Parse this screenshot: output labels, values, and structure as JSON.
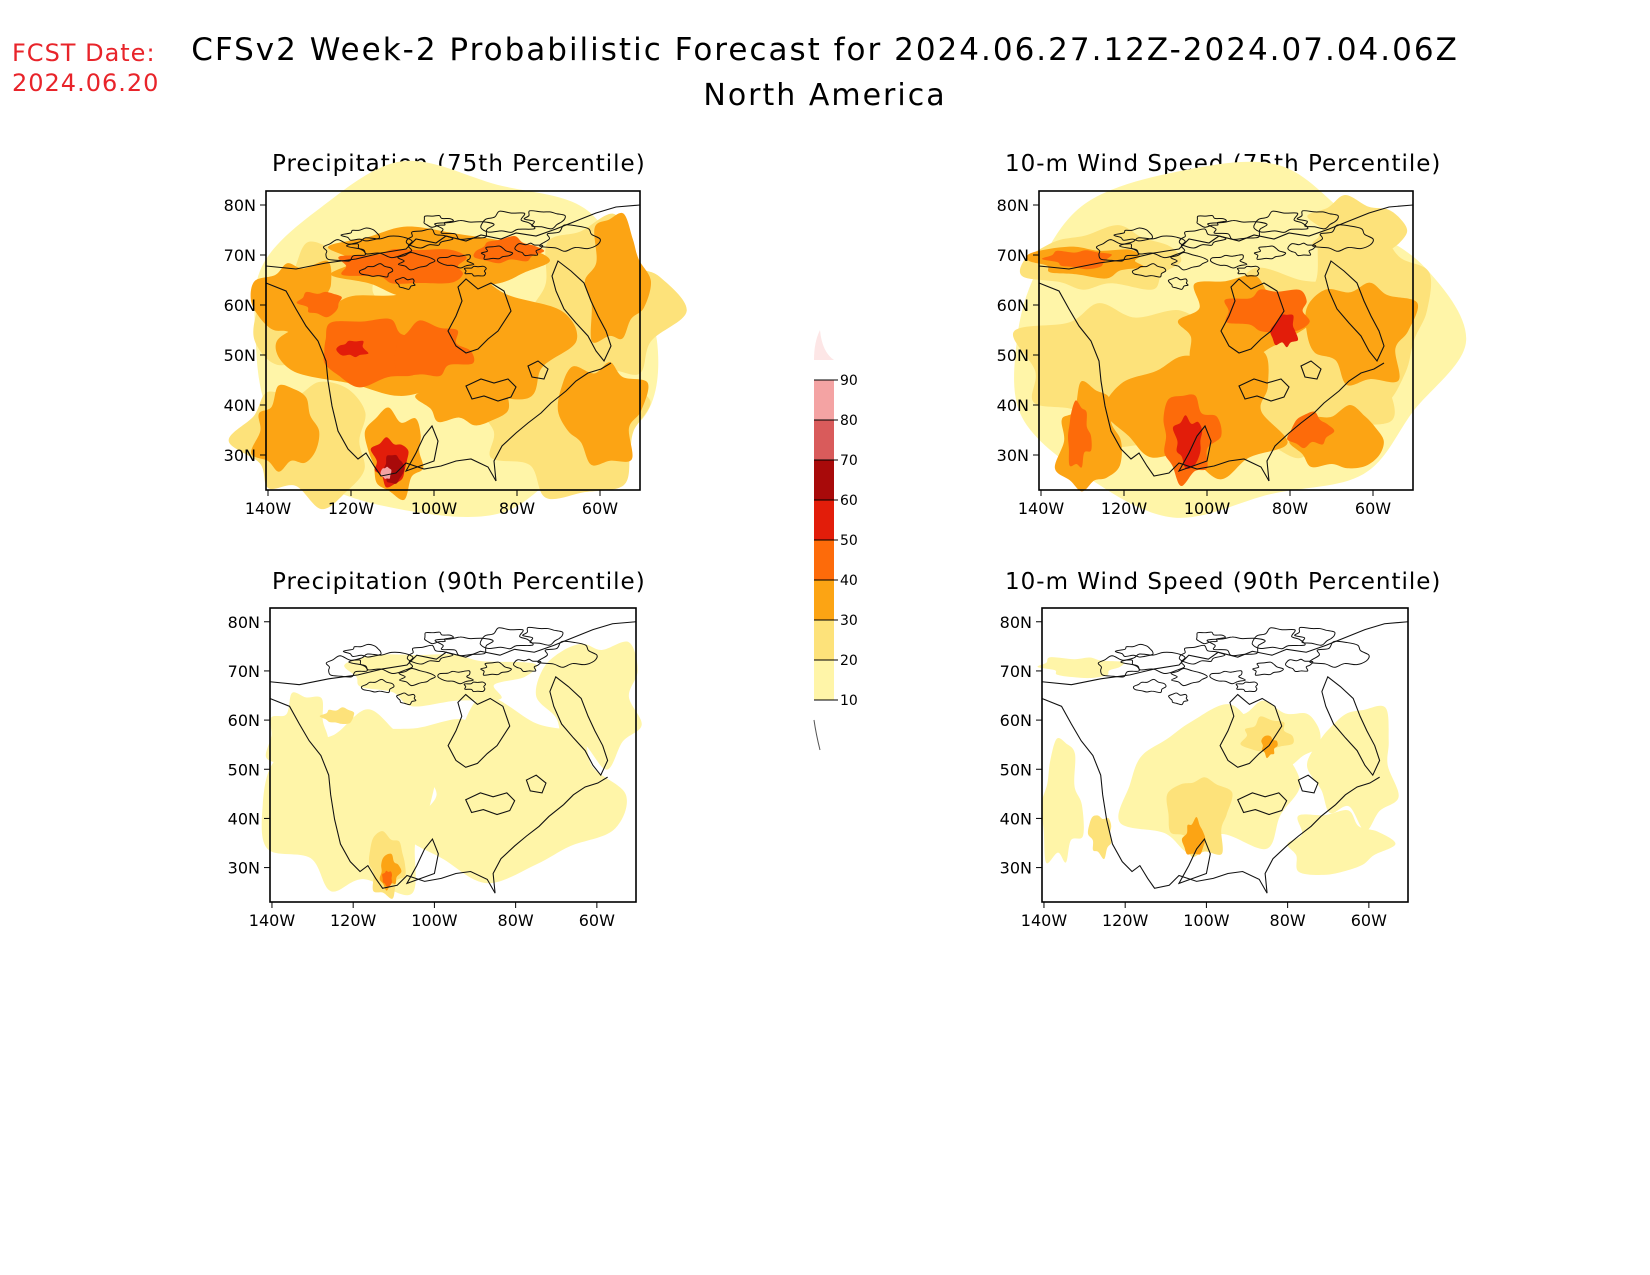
{
  "header": {
    "fcst_label": "FCST Date:",
    "fcst_date": "2024.06.20",
    "title": "CFSv2 Week-2 Probabilistic Forecast for 2024.06.27.12Z-2024.07.04.06Z",
    "subtitle": "North America"
  },
  "panels": [
    {
      "id": "precip75",
      "title": "Precipitation (75th Percentile)"
    },
    {
      "id": "wind75",
      "title": "10-m Wind Speed (75th Percentile)"
    },
    {
      "id": "precip90",
      "title": "Precipitation (90th Percentile)"
    },
    {
      "id": "wind90",
      "title": "10-m Wind Speed (90th Percentile)"
    }
  ],
  "axes": {
    "lat_labels": [
      "80N",
      "70N",
      "60N",
      "50N",
      "40N",
      "30N"
    ],
    "lon_labels": [
      "140W",
      "120W",
      "100W",
      "80W",
      "60W"
    ]
  },
  "colorbar": {
    "levels": [
      "10",
      "20",
      "30",
      "40",
      "50",
      "60",
      "70",
      "80",
      "90"
    ],
    "colors": [
      "#fff5a8",
      "#fde27a",
      "#fca414",
      "#fd6b0a",
      "#e21d0a",
      "#a80a0a",
      "#d95b5b",
      "#f4a3a3",
      "#fde6e6"
    ]
  }
}
